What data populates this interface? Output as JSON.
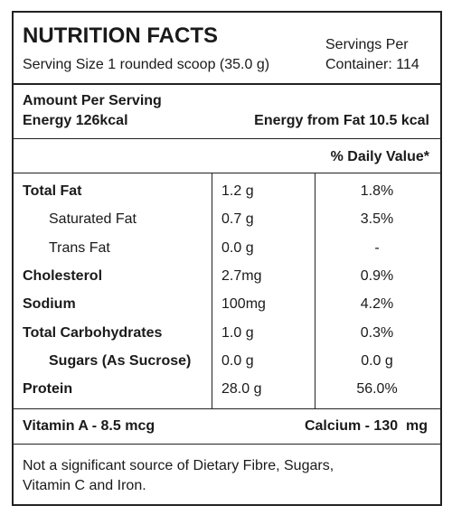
{
  "header": {
    "title": "NUTRITION FACTS",
    "serving_size": "Serving Size 1 rounded scoop (35.0 g)",
    "servings": [
      "Servings Per",
      "Container: 114"
    ]
  },
  "amount": {
    "heading": "Amount Per Serving",
    "energy": "Energy 126kcal",
    "energy_from_fat": "Energy from Fat 10.5 kcal"
  },
  "daily_value_header": "% Daily Value*",
  "table": {
    "rows": [
      [
        "Total Fat",
        "1.2 g",
        "1.8%"
      ],
      [
        "Saturated Fat",
        "0.7 g",
        "3.5%"
      ],
      [
        "Trans Fat",
        "0.0 g",
        "-"
      ],
      [
        "Cholesterol",
        "2.7mg",
        "0.9%"
      ],
      [
        "Sodium",
        "100mg",
        "4.2%"
      ],
      [
        "Total Carbohydrates",
        "1.0 g",
        "0.3%"
      ],
      [
        "Sugars (As Sucrose)",
        "0.0 g",
        "0.0 g"
      ],
      [
        "Protein",
        "28.0 g",
        "56.0%"
      ]
    ]
  },
  "vitamins": [
    "Vitamin A - 8.5 mcg",
    "Calcium - 130  mg"
  ],
  "footnote": [
    "Not a significant source of Dietary Fibre, Sugars,",
    "Vitamin C and Iron."
  ]
}
